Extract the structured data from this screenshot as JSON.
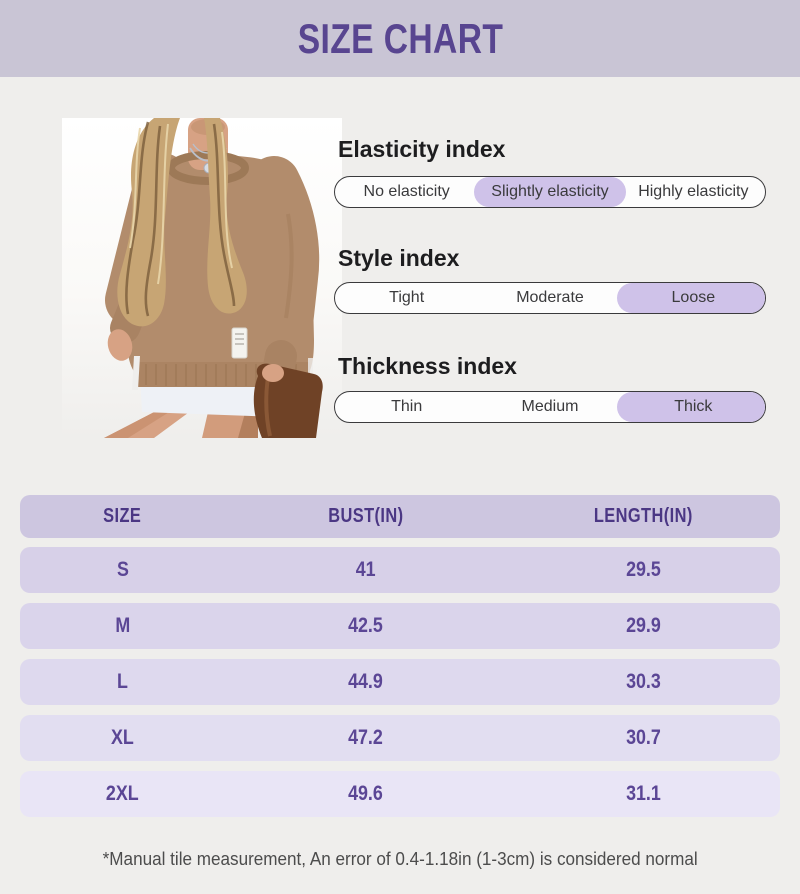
{
  "banner": {
    "title": "SIZE CHART"
  },
  "indexes": [
    {
      "title": "Elasticity index",
      "options": [
        "No elasticity",
        "Slightly elasticity",
        "Highly elasticity"
      ],
      "selected": 1
    },
    {
      "title": "Style index",
      "options": [
        "Tight",
        "Moderate",
        "Loose"
      ],
      "selected": 2
    },
    {
      "title": "Thickness index",
      "options": [
        "Thin",
        "Medium",
        "Thick"
      ],
      "selected": 2
    }
  ],
  "table": {
    "headers": [
      "SIZE",
      "BUST(IN)",
      "LENGTH(IN)"
    ],
    "rows": [
      [
        "S",
        "41",
        "29.5"
      ],
      [
        "M",
        "42.5",
        "29.9"
      ],
      [
        "L",
        "44.9",
        "30.3"
      ],
      [
        "XL",
        "47.2",
        "30.7"
      ],
      [
        "2XL",
        "49.6",
        "31.1"
      ]
    ],
    "row_colors": [
      "#d7d0e8",
      "#dad4eb",
      "#ded9ee",
      "#e2def1",
      "#e9e5f6"
    ],
    "header_color": "#cdc6e0"
  },
  "footnote": "*Manual tile measurement, An error of 0.4-1.18in (1-3cm) is considered normal",
  "photo": {
    "description": "Model wearing tan oversized crewneck sweatshirt over white layer, holding brown leather bag"
  },
  "colors": {
    "banner_bg": "#c9c5d5",
    "title_purple": "#584590",
    "accent_highlight": "#cfc2e9",
    "table_header_text": "#4b3784",
    "table_text": "#5b4695",
    "page_bg": "#efeeec"
  }
}
